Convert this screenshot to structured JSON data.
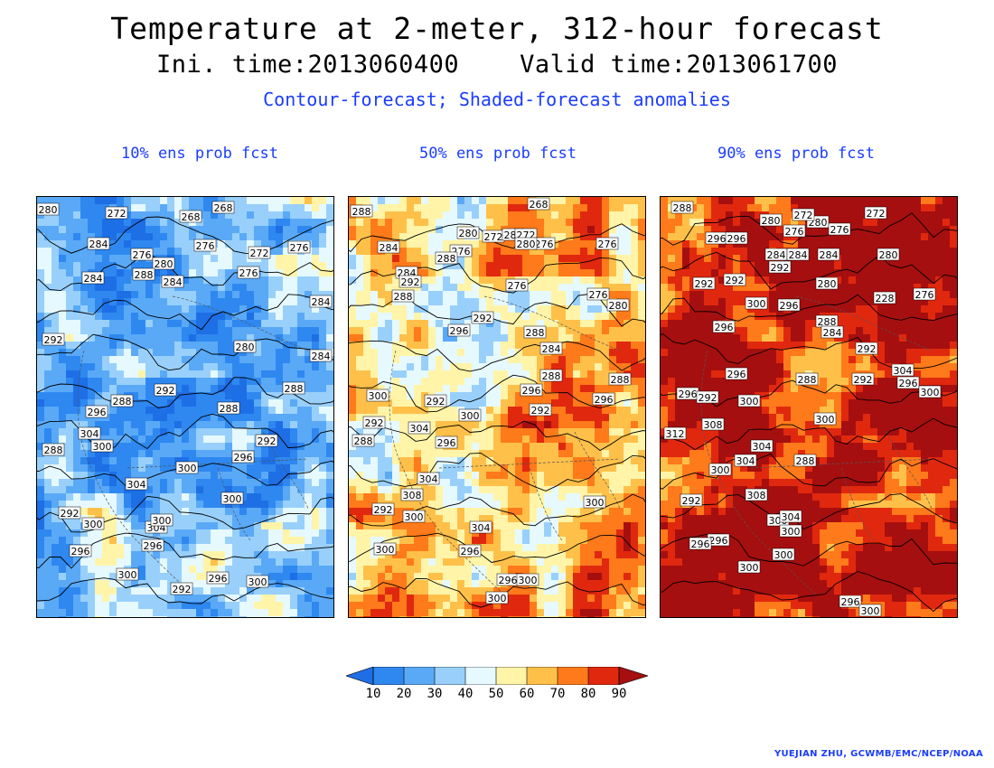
{
  "title": "Temperature at 2-meter, 312-hour forecast",
  "subtitle": "Ini. time:2013060400    Valid time:2013061700",
  "caption": "Contour-forecast; Shaded-forecast anomalies",
  "credit": "YUEJIAN ZHU, GCWMB/EMC/NCEP/NOAA",
  "colors": {
    "caption": "#1a3cff",
    "scale": [
      "#1e6fe6",
      "#2e88f0",
      "#5aa9f7",
      "#98d0fb",
      "#e6f9ff",
      "#fff4a8",
      "#ffc04a",
      "#ff7a1a",
      "#e0280f",
      "#a60f0f"
    ]
  },
  "colorbar": {
    "ticks": [
      "10",
      "20",
      "30",
      "40",
      "50",
      "60",
      "70",
      "80",
      "90"
    ]
  },
  "panels": [
    {
      "label": "10% ens prob fcst",
      "contour_labels": [
        "280",
        "272",
        "268",
        "268",
        "284",
        "276",
        "280",
        "276",
        "272",
        "276",
        "288",
        "284",
        "284",
        "276",
        "284",
        "280",
        "284",
        "292",
        "288",
        "288",
        "292",
        "296",
        "288",
        "304",
        "300",
        "288",
        "292",
        "296",
        "300",
        "304",
        "300",
        "292",
        "300",
        "296",
        "304",
        "300",
        "296",
        "300",
        "296",
        "292",
        "300"
      ]
    },
    {
      "label": "50% ens prob fcst",
      "contour_labels": [
        "288",
        "268",
        "284",
        "280",
        "272",
        "280",
        "276",
        "272",
        "276",
        "280",
        "276",
        "288",
        "284",
        "292",
        "288",
        "276",
        "276",
        "280",
        "292",
        "296",
        "288",
        "284",
        "288",
        "296",
        "288",
        "300",
        "292",
        "300",
        "292",
        "296",
        "304",
        "292",
        "296",
        "288",
        "304",
        "308",
        "292",
        "300",
        "304",
        "296",
        "300",
        "296",
        "300",
        "300",
        "300"
      ]
    },
    {
      "label": "90% ens prob fcst",
      "contour_labels": [
        "288",
        "296",
        "296",
        "280",
        "276",
        "280",
        "272",
        "276",
        "272",
        "284",
        "284",
        "292",
        "280",
        "284",
        "280",
        "292",
        "292",
        "300",
        "296",
        "288",
        "228",
        "276",
        "284",
        "296",
        "292",
        "296",
        "288",
        "296",
        "292",
        "304",
        "300",
        "296",
        "292",
        "300",
        "308",
        "300",
        "304",
        "288",
        "304",
        "312",
        "300",
        "292",
        "308",
        "300",
        "304",
        "300",
        "296",
        "296",
        "300",
        "300",
        "296",
        "300"
      ]
    }
  ]
}
